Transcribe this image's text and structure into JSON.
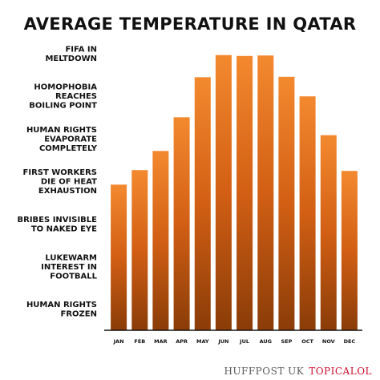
{
  "chart_data": {
    "type": "bar",
    "title": "AVERAGE TEMPERATURE IN QATAR",
    "categories": [
      "JAN",
      "FEB",
      "MAR",
      "APR",
      "MAY",
      "JUN",
      "JUL",
      "AUG",
      "SEP",
      "OCT",
      "NOV",
      "DEC"
    ],
    "values": [
      3.42,
      3.76,
      4.21,
      5.0,
      5.94,
      6.46,
      6.44,
      6.45,
      5.95,
      5.49,
      4.58,
      3.74
    ],
    "ylim": [
      0,
      7
    ],
    "y_tick_labels": [
      {
        "value": 0.5,
        "lines": [
          "HUMAN RIGHTS",
          "FROZEN"
        ]
      },
      {
        "value": 1.5,
        "lines": [
          "LUKEWARM",
          "INTEREST IN",
          "FOOTBALL"
        ]
      },
      {
        "value": 2.5,
        "lines": [
          "BRIBES INVISIBLE",
          "TO NAKED EYE"
        ]
      },
      {
        "value": 3.5,
        "lines": [
          "FIRST WORKERS",
          "DIE OF HEAT",
          "EXHAUSTION"
        ]
      },
      {
        "value": 4.5,
        "lines": [
          "HUMAN RIGHTS",
          "EVAPORATE",
          "COMPLETELY"
        ]
      },
      {
        "value": 5.5,
        "lines": [
          "HOMOPHOBIA",
          "REACHES",
          "BOILING POINT"
        ]
      },
      {
        "value": 6.5,
        "lines": [
          "FIFA IN",
          "MELTDOWN"
        ]
      }
    ],
    "bar_gradient": [
      "#f3892f",
      "#d25f14",
      "#8a3c08"
    ],
    "grid": false,
    "legend": "none"
  },
  "credit": {
    "huffpost": "HUFFPOST UK",
    "topical": "TOPICALOL"
  }
}
